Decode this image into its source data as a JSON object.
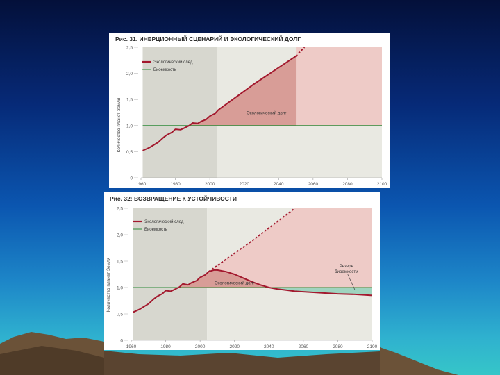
{
  "chart_data": [
    {
      "type": "line",
      "title": "Рис. 31. ИНЕРЦИОННЫЙ СЦЕНАРИЙ И ЭКОЛОГИЧЕСКИЙ ДОЛГ",
      "ylabel": "Количество планет Земля",
      "xlim": [
        1960,
        2100
      ],
      "ylim": [
        0,
        2.5
      ],
      "x_ticks": [
        "1960",
        "1980",
        "2000",
        "2020",
        "2040",
        "2060",
        "2080",
        "2100"
      ],
      "y_ticks": [
        "0",
        "0,5",
        "1,0",
        "1,5",
        "2,0",
        "2,5"
      ],
      "legend": {
        "placement": "top-left",
        "items": [
          "Экологический след",
          "Биоемкость"
        ]
      },
      "annotations": [
        "Экологический долг"
      ],
      "series": [
        {
          "name": "Экологический след",
          "style": "solid",
          "x": [
            1961,
            1965,
            1970,
            1973,
            1975,
            1978,
            1980,
            1983,
            1985,
            1988,
            1990,
            1993,
            1995,
            1998,
            2000,
            2003,
            2005,
            2010,
            2015,
            2020,
            2025,
            2030,
            2035,
            2040,
            2045,
            2050
          ],
          "y": [
            0.52,
            0.58,
            0.68,
            0.77,
            0.82,
            0.87,
            0.93,
            0.92,
            0.95,
            1.0,
            1.05,
            1.04,
            1.08,
            1.12,
            1.18,
            1.23,
            1.3,
            1.42,
            1.54,
            1.66,
            1.78,
            1.89,
            2.0,
            2.11,
            2.22,
            2.33
          ]
        },
        {
          "name": "Экологический след (прогноз)",
          "style": "dashed",
          "x": [
            2050,
            2055
          ],
          "y": [
            2.33,
            2.52
          ]
        },
        {
          "name": "Биоемкость",
          "style": "solid",
          "x": [
            1961,
            2100
          ],
          "y": [
            1.0,
            1.0
          ]
        }
      ],
      "regions": {
        "history": [
          1961,
          2004
        ],
        "scenario": [
          2050,
          2100
        ]
      },
      "colors": {
        "footprint": "#a3192e",
        "biocapacity": "#2e8b3a",
        "history_bg": "#d7d7cf",
        "future_bg": "#e9e9e2",
        "debt_fill": "#d89d97",
        "scenario_fill": "#eecbc7"
      }
    },
    {
      "type": "line",
      "title": "Рис. 32: ВОЗВРАЩЕНИЕ К УСТОЙЧИВОСТИ",
      "ylabel": "Количество планет Земля",
      "xlim": [
        1960,
        2100
      ],
      "ylim": [
        0,
        2.5
      ],
      "x_ticks": [
        "1960",
        "1980",
        "2000",
        "2020",
        "2040",
        "2060",
        "2080",
        "2100"
      ],
      "y_ticks": [
        "0",
        "0,5",
        "1,0",
        "1,5",
        "2,0",
        "2,5"
      ],
      "legend": {
        "placement": "top-left",
        "items": [
          "Экологический след",
          "Биоемкость"
        ]
      },
      "annotations": [
        "Экологический долг",
        "Резерв",
        "биоемкости"
      ],
      "series": [
        {
          "name": "Экологический след",
          "style": "solid",
          "x": [
            1961,
            1965,
            1970,
            1973,
            1975,
            1978,
            1980,
            1983,
            1985,
            1988,
            1990,
            1993,
            1995,
            1998,
            2000,
            2003,
            2005,
            2008,
            2010,
            2015,
            2020,
            2025,
            2030,
            2035,
            2040,
            2045,
            2050,
            2055,
            2060,
            2070,
            2080,
            2090,
            2100
          ],
          "y": [
            0.53,
            0.59,
            0.69,
            0.78,
            0.83,
            0.88,
            0.94,
            0.93,
            0.96,
            1.01,
            1.07,
            1.05,
            1.09,
            1.13,
            1.19,
            1.24,
            1.3,
            1.33,
            1.33,
            1.3,
            1.25,
            1.18,
            1.11,
            1.05,
            1.0,
            0.97,
            0.95,
            0.93,
            0.92,
            0.9,
            0.88,
            0.87,
            0.85
          ]
        },
        {
          "name": "Инерционный сценарий",
          "style": "dashed",
          "x": [
            2005,
            2030,
            2055
          ],
          "y": [
            1.3,
            1.88,
            2.5
          ]
        },
        {
          "name": "Биоемкость",
          "style": "solid",
          "x": [
            1961,
            2100
          ],
          "y": [
            1.0,
            1.0
          ]
        }
      ],
      "regions": {
        "history": [
          1961,
          2004
        ]
      },
      "colors": {
        "footprint": "#a3192e",
        "biocapacity": "#2e8b3a",
        "history_bg": "#d7d7cf",
        "future_bg": "#e9e9e2",
        "debt_fill": "#d89d97",
        "scenario_fill": "#eecbc7",
        "reserve_fill": "#9fd4bf"
      }
    }
  ]
}
